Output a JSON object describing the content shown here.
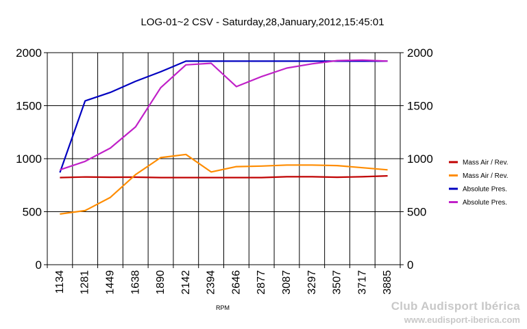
{
  "chart_data": {
    "type": "line",
    "title": "LOG-01~2 CSV - Saturday,28,January,2012,15:45:01",
    "xlabel": "RPM",
    "ylabel": "",
    "ylim": [
      0,
      2000
    ],
    "yticks": [
      0,
      500,
      1000,
      1500,
      2000
    ],
    "y_axis_both_sides": true,
    "grid": true,
    "legend_position": "right",
    "categories": [
      "1134",
      "1281",
      "1449",
      "1638",
      "1890",
      "2142",
      "2394",
      "2646",
      "2877",
      "3087",
      "3297",
      "3507",
      "3717",
      "3885"
    ],
    "series": [
      {
        "name": "Mass Air / Rev.",
        "color": "#c00000",
        "values": [
          822,
          828,
          825,
          826,
          822,
          822,
          822,
          822,
          822,
          830,
          830,
          825,
          830,
          838
        ]
      },
      {
        "name": "Mass Air / Rev.",
        "color": "#ff8c00",
        "values": [
          478,
          510,
          635,
          850,
          1010,
          1040,
          875,
          925,
          930,
          940,
          940,
          935,
          915,
          895
        ]
      },
      {
        "name": "Absolute Pres.",
        "color": "#0000c0",
        "values": [
          870,
          1545,
          1625,
          1730,
          1820,
          1920,
          1920,
          1920,
          1920,
          1920,
          1920,
          1920,
          1920,
          1920
        ]
      },
      {
        "name": "Absolute Pres.",
        "color": "#c020c8",
        "values": [
          895,
          975,
          1100,
          1300,
          1670,
          1885,
          1900,
          1680,
          1775,
          1855,
          1895,
          1925,
          1930,
          1920
        ]
      }
    ]
  },
  "watermark": {
    "logo_text": "Club Audisport Ibérica",
    "url": "www.eudisport-iberica.com"
  }
}
